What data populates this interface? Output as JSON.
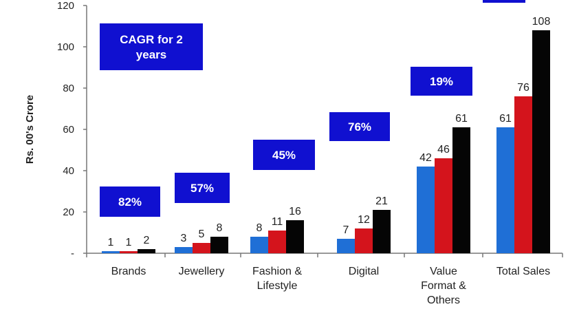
{
  "chart_data": {
    "type": "bar",
    "ylabel": "Rs. 00's Crore",
    "ylim": [
      0,
      120
    ],
    "yticks": [
      "-",
      "20",
      "40",
      "60",
      "80",
      "100",
      "120"
    ],
    "categories": [
      [
        "Brands"
      ],
      [
        "Jewellery"
      ],
      [
        "Fashion &",
        "Lifestyle"
      ],
      [
        "Digital"
      ],
      [
        "Value",
        "Format &",
        "Others"
      ],
      [
        "Total Sales"
      ]
    ],
    "series": [
      {
        "color": "#1f6fd6",
        "values": [
          1,
          3,
          8,
          7,
          42,
          61
        ],
        "labels": [
          "1",
          "3",
          "8",
          "7",
          "42",
          "61"
        ]
      },
      {
        "color": "#d4141c",
        "values": [
          1,
          5,
          11,
          12,
          46,
          76
        ],
        "labels": [
          "1",
          "5",
          "11",
          "12",
          "46",
          "76"
        ]
      },
      {
        "color": "#050505",
        "values": [
          2,
          8,
          16,
          21,
          61,
          108
        ],
        "labels": [
          "2",
          "8",
          "16",
          "21",
          "61",
          "108"
        ]
      }
    ],
    "annotations": [
      {
        "text": [
          "CAGR for 2",
          "years"
        ]
      },
      {
        "text": [
          "82%"
        ]
      },
      {
        "text": [
          "57%"
        ]
      },
      {
        "text": [
          "45%"
        ]
      },
      {
        "text": [
          "76%"
        ]
      },
      {
        "text": [
          "19%"
        ]
      },
      {
        "text": []
      }
    ],
    "annotation_color": "#1010d0",
    "grid": false
  }
}
